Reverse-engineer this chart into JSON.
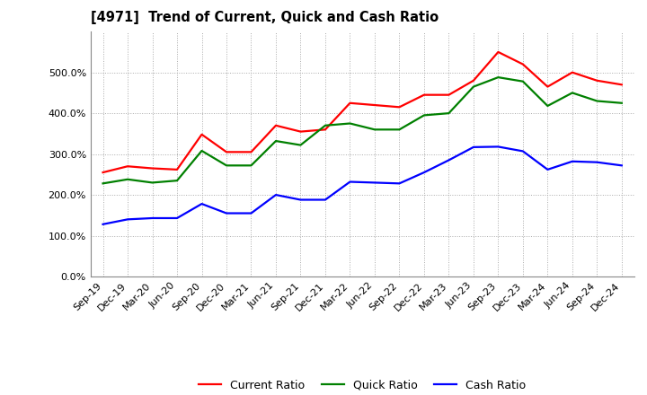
{
  "title": "[4971]  Trend of Current, Quick and Cash Ratio",
  "x_labels": [
    "Sep-19",
    "Dec-19",
    "Mar-20",
    "Jun-20",
    "Sep-20",
    "Dec-20",
    "Mar-21",
    "Jun-21",
    "Sep-21",
    "Dec-21",
    "Mar-22",
    "Jun-22",
    "Sep-22",
    "Dec-22",
    "Mar-23",
    "Jun-23",
    "Sep-23",
    "Dec-23",
    "Mar-24",
    "Jun-24",
    "Sep-24",
    "Dec-24"
  ],
  "current_ratio": [
    255,
    270,
    265,
    262,
    348,
    305,
    305,
    370,
    355,
    360,
    425,
    420,
    415,
    445,
    445,
    480,
    550,
    520,
    465,
    500,
    480,
    470
  ],
  "quick_ratio": [
    228,
    238,
    230,
    235,
    308,
    272,
    272,
    332,
    322,
    370,
    375,
    360,
    360,
    395,
    400,
    465,
    488,
    478,
    418,
    450,
    430,
    425
  ],
  "cash_ratio": [
    128,
    140,
    143,
    143,
    178,
    155,
    155,
    200,
    188,
    188,
    232,
    230,
    228,
    255,
    285,
    317,
    318,
    307,
    262,
    282,
    280,
    272
  ],
  "current_color": "#ff0000",
  "quick_color": "#008000",
  "cash_color": "#0000ff",
  "ylim": [
    0,
    600
  ],
  "yticks": [
    0,
    100,
    200,
    300,
    400,
    500
  ],
  "background_color": "#ffffff",
  "grid_color": "#aaaaaa",
  "line_width": 1.6
}
